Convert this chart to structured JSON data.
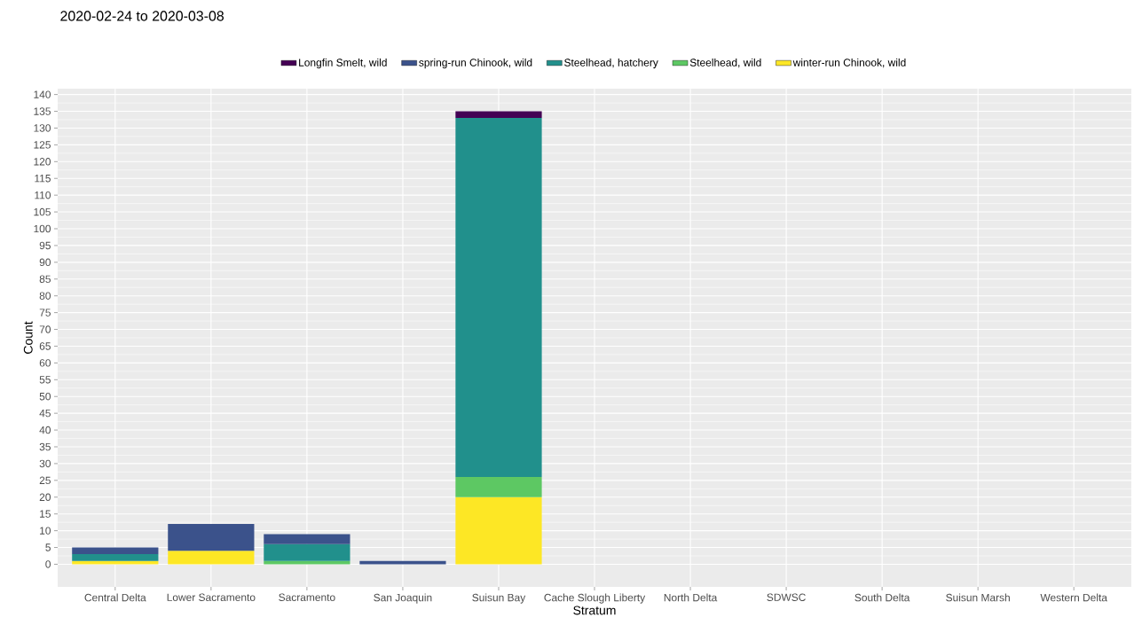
{
  "chart_data": {
    "type": "bar",
    "title": "2020-02-24 to 2020-03-08",
    "xlabel": "Stratum",
    "ylabel": "Count",
    "categories": [
      "Central Delta",
      "Lower Sacramento",
      "Sacramento",
      "San Joaquin",
      "Suisun Bay",
      "Cache Slough Liberty",
      "North Delta",
      "SDWSC",
      "South Delta",
      "Suisun Marsh",
      "Western Delta"
    ],
    "stacked": true,
    "series": [
      {
        "name": "winter-run Chinook, wild",
        "color": "#fde725",
        "values": [
          1,
          4,
          0,
          0,
          20,
          0,
          0,
          0,
          0,
          0,
          0
        ]
      },
      {
        "name": "Steelhead, wild",
        "color": "#5dc863",
        "values": [
          0,
          0,
          1,
          0,
          6,
          0,
          0,
          0,
          0,
          0,
          0
        ]
      },
      {
        "name": "Steelhead, hatchery",
        "color": "#21908c",
        "values": [
          2,
          0,
          5,
          0,
          107,
          0,
          0,
          0,
          0,
          0,
          0
        ]
      },
      {
        "name": "spring-run Chinook, wild",
        "color": "#3b528b",
        "values": [
          2,
          8,
          3,
          1,
          0,
          0,
          0,
          0,
          0,
          0,
          0
        ]
      },
      {
        "name": "Longfin Smelt, wild",
        "color": "#440154",
        "values": [
          0,
          0,
          0,
          0,
          2,
          0,
          0,
          0,
          0,
          0,
          0
        ]
      }
    ],
    "ylim": [
      -6.75,
      141.75
    ],
    "yticks": [
      0,
      5,
      10,
      15,
      20,
      25,
      30,
      35,
      40,
      45,
      50,
      55,
      60,
      65,
      70,
      75,
      80,
      85,
      90,
      95,
      100,
      105,
      110,
      115,
      120,
      125,
      130,
      135,
      140
    ],
    "grid": true,
    "legend": "top"
  }
}
